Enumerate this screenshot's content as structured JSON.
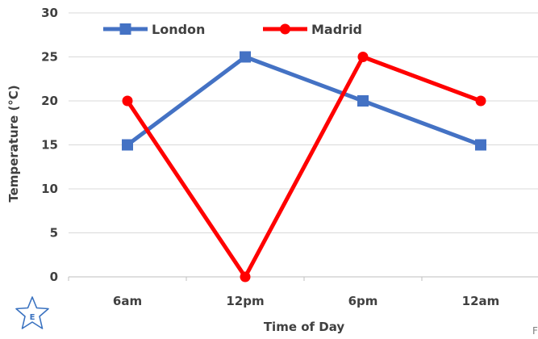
{
  "chart_data": {
    "type": "line",
    "categories": [
      "6am",
      "12pm",
      "6pm",
      "12am"
    ],
    "series": [
      {
        "name": "London",
        "values": [
          15,
          25,
          20,
          15
        ],
        "color": "#4472c4",
        "marker": "square"
      },
      {
        "name": "Madrid",
        "values": [
          20,
          0,
          25,
          20
        ],
        "color": "#ff0000",
        "marker": "circle"
      }
    ],
    "xlabel": "Time of Day",
    "ylabel": "Temperature (°C)",
    "ylim": [
      0,
      30
    ],
    "yticks": [
      0,
      5,
      10,
      15,
      20,
      25,
      30
    ],
    "grid": "horizontal",
    "legend": "top-left"
  },
  "logo": {
    "letter": "E",
    "icon": "star-logo-icon",
    "color": "#3a72c0"
  },
  "corner_text": "F"
}
